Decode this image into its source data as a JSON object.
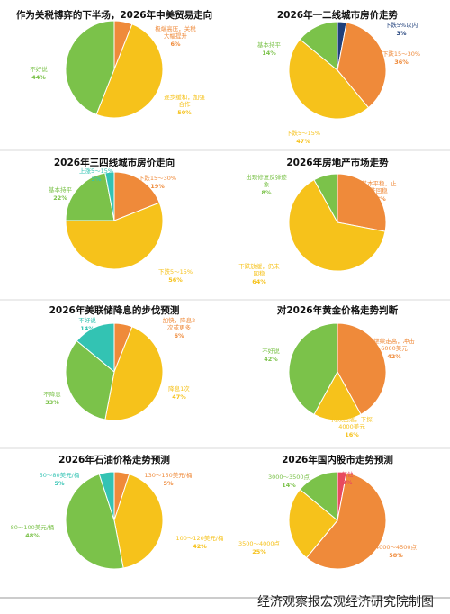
{
  "footer": "经济观察报宏观经济研究院制图",
  "colors": {
    "orange": "#ef8a3a",
    "yellow": "#f6c21b",
    "green": "#7bc24a",
    "teal": "#33c3b3",
    "navy": "#1f3f7a",
    "red": "#e84a5f"
  },
  "chart_data": [
    {
      "type": "pie",
      "title": "作为关税博弈的下半场，2026年中美贸易走向",
      "categories": [
        "极端高压，关税大幅提升",
        "逐步缓和，加强合作",
        "不好说"
      ],
      "values": [
        6,
        50,
        44
      ],
      "value_labels": [
        "6%",
        "50%",
        "44%"
      ],
      "colors": [
        "#ef8a3a",
        "#f6c21b",
        "#7bc24a"
      ]
    },
    {
      "type": "pie",
      "title": "2026年一二线城市房价走势",
      "categories": [
        "下跌5%以内",
        "下跌15～30%",
        "下跌5～15%",
        "基本持平"
      ],
      "values": [
        3,
        36,
        47,
        14
      ],
      "value_labels": [
        "3%",
        "36%",
        "47%",
        "14%"
      ],
      "colors": [
        "#1f3f7a",
        "#ef8a3a",
        "#f6c21b",
        "#7bc24a"
      ]
    },
    {
      "type": "pie",
      "title": "2026年三四线城市房价走向",
      "categories": [
        "下跌15～30%",
        "下跌5～15%",
        "基本持平",
        "上涨5～15%"
      ],
      "values": [
        19,
        56,
        22,
        3
      ],
      "value_labels": [
        "19%",
        "56%",
        "22%",
        "3%"
      ],
      "colors": [
        "#ef8a3a",
        "#f6c21b",
        "#7bc24a",
        "#33c3b3"
      ]
    },
    {
      "type": "pie",
      "title": "2026年房地产市场走势",
      "categories": [
        "基本平稳，止跌回稳",
        "下跌放缓，仍未回稳",
        "出现修复反弹迹象"
      ],
      "values": [
        28,
        64,
        8
      ],
      "value_labels": [
        "28%",
        "64%",
        "8%"
      ],
      "colors": [
        "#ef8a3a",
        "#f6c21b",
        "#7bc24a"
      ]
    },
    {
      "type": "pie",
      "title": "2026年美联储降息的步伐预测",
      "categories": [
        "加快，降息2次或更多",
        "降息1次",
        "不降息",
        "不好说"
      ],
      "values": [
        6,
        47,
        33,
        14
      ],
      "value_labels": [
        "6%",
        "47%",
        "33%",
        "14%"
      ],
      "colors": [
        "#ef8a3a",
        "#f6c21b",
        "#7bc24a",
        "#33c3b3"
      ]
    },
    {
      "type": "pie",
      "title": "对2026年黄金价格走势判断",
      "categories": [
        "继续走高，冲击6000美元",
        "持续回落，下探4000美元",
        "不好说"
      ],
      "values": [
        42,
        16,
        42
      ],
      "value_labels": [
        "42%",
        "16%",
        "42%"
      ],
      "colors": [
        "#ef8a3a",
        "#f6c21b",
        "#7bc24a"
      ]
    },
    {
      "type": "pie",
      "title": "2026年石油价格走势预测",
      "categories": [
        "130～150美元/桶",
        "100～120美元/桶",
        "80～100美元/桶",
        "50～80美元/桶"
      ],
      "values": [
        5,
        42,
        48,
        5
      ],
      "value_labels": [
        "5%",
        "42%",
        "48%",
        "5%"
      ],
      "colors": [
        "#ef8a3a",
        "#f6c21b",
        "#7bc24a",
        "#33c3b3"
      ]
    },
    {
      "type": "pie",
      "title": "2026年国内股市走势预测",
      "categories": [
        "其他",
        "4000～4500点",
        "3500～4000点",
        "3000～3500点"
      ],
      "values": [
        3,
        58,
        25,
        14
      ],
      "value_labels": [
        "3%",
        "58%",
        "25%",
        "14%"
      ],
      "colors": [
        "#e84a5f",
        "#ef8a3a",
        "#f6c21b",
        "#7bc24a"
      ]
    }
  ]
}
